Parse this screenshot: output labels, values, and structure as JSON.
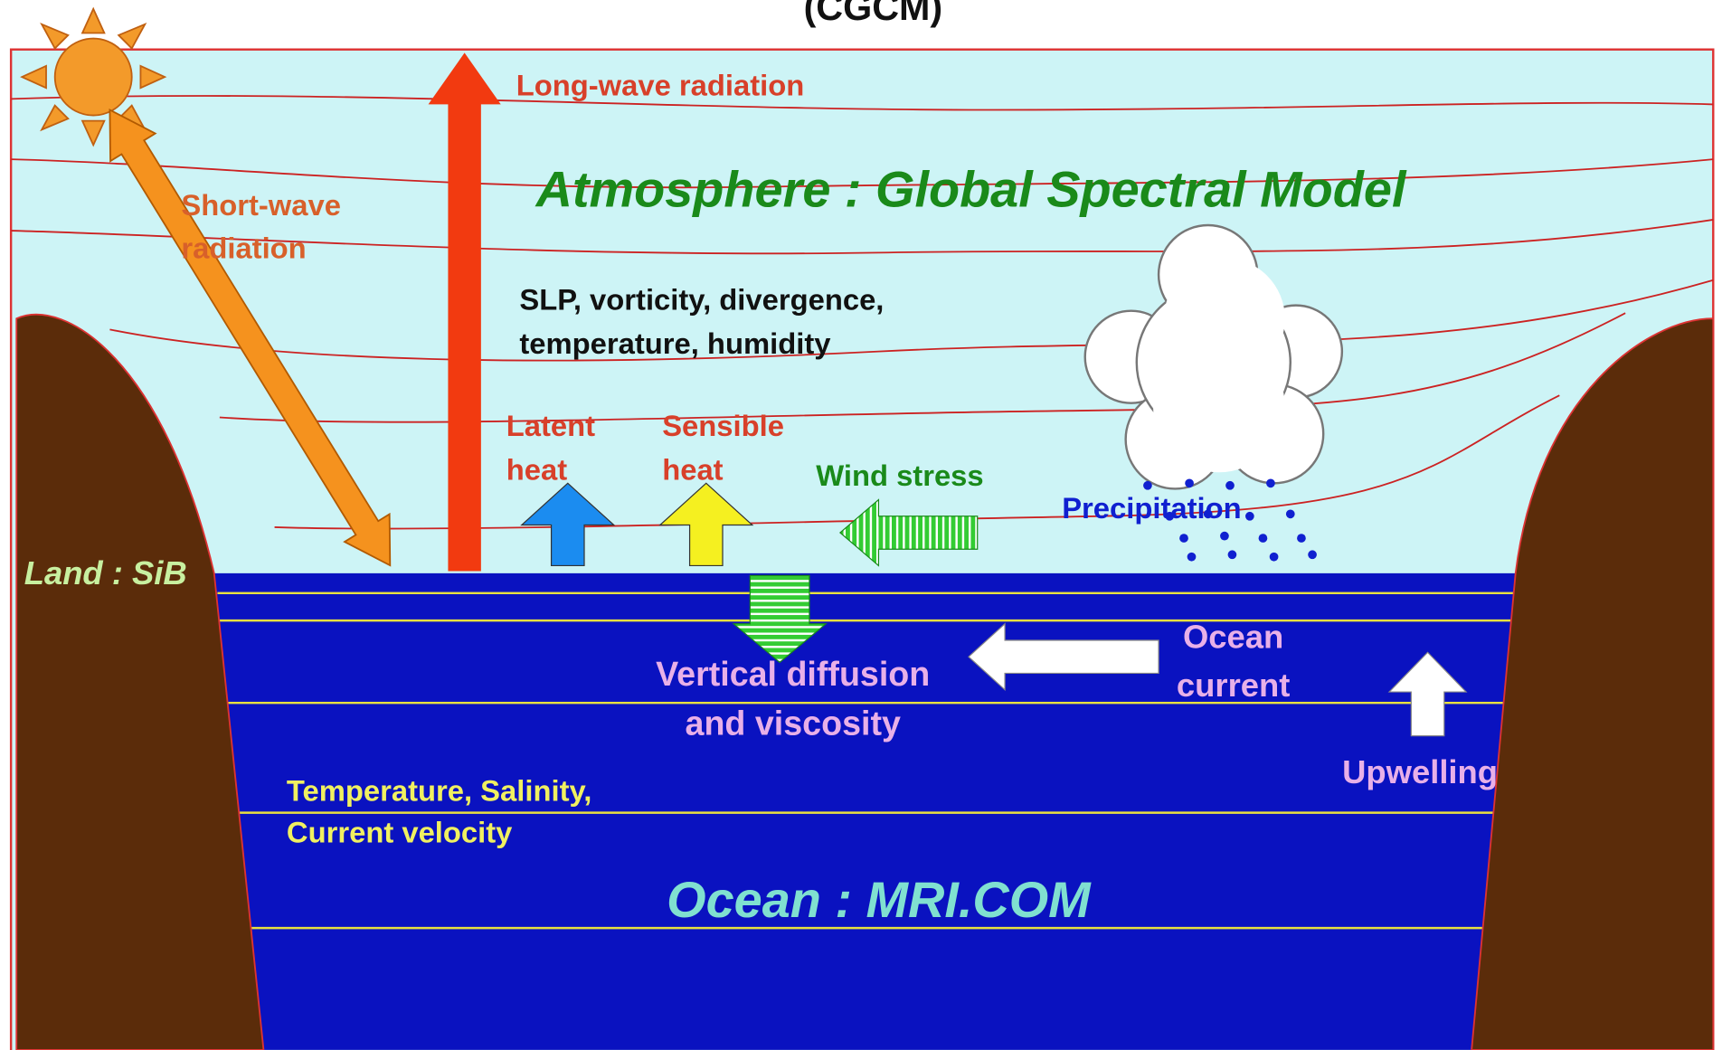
{
  "title": "(CGCM)",
  "atmosphere": {
    "title": "Atmosphere : Global Spectral Model",
    "variables": [
      "SLP, vorticity, divergence,",
      "temperature, humidity"
    ]
  },
  "fluxes": {
    "long_wave": "Long-wave radiation",
    "short_wave": [
      "Short-wave",
      "radiation"
    ],
    "latent_heat": [
      "Latent",
      "heat"
    ],
    "sensible_heat": [
      "Sensible",
      "heat"
    ],
    "wind_stress": "Wind stress",
    "precipitation": "Precipitation"
  },
  "land": {
    "title": "Land : SiB"
  },
  "ocean": {
    "title": "Ocean : MRI.COM",
    "variables": [
      "Temperature, Salinity,",
      "Current velocity"
    ],
    "current": [
      "Ocean",
      "current"
    ],
    "vertical_diffusion": [
      "Vertical diffusion",
      "and viscosity"
    ],
    "upwelling": "Upwelling"
  }
}
